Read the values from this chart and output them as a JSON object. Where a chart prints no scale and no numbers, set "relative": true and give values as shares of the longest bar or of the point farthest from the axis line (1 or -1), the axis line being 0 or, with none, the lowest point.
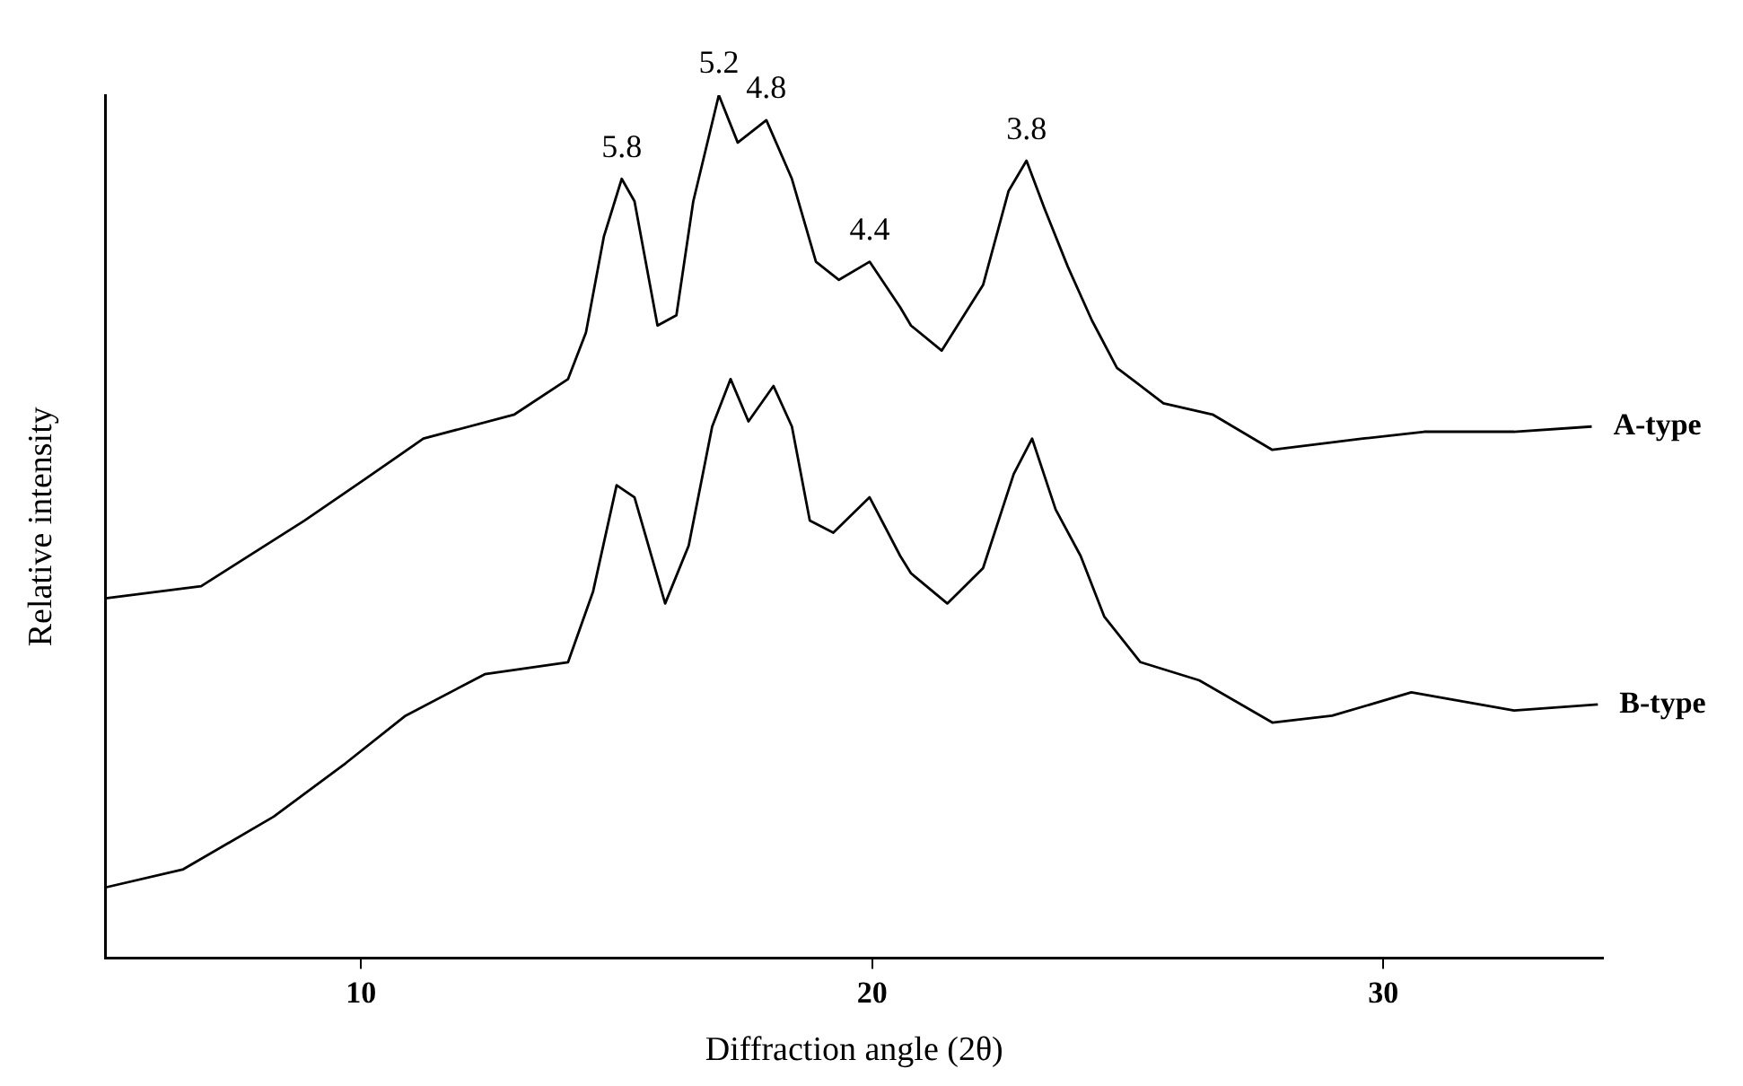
{
  "chart_data": {
    "type": "line",
    "xlabel": "Diffraction angle (2θ)",
    "ylabel": "Relative intensity",
    "relative": true,
    "xlim": [
      5,
      34.3
    ],
    "xticks": [
      10,
      20,
      30
    ],
    "grid": false,
    "legend": false,
    "marker": "none",
    "line_style": "solid",
    "series": [
      {
        "name": "A-type",
        "color": "#000000",
        "x": [
          5.0,
          6.87,
          8.89,
          10.05,
          11.22,
          13.0,
          14.05,
          14.4,
          14.75,
          15.1,
          15.35,
          15.8,
          16.17,
          16.5,
          17.0,
          17.37,
          17.93,
          18.43,
          18.9,
          19.35,
          19.95,
          20.55,
          20.76,
          21.36,
          22.17,
          22.67,
          23.02,
          23.37,
          23.83,
          24.3,
          24.79,
          25.7,
          26.66,
          27.83,
          29.6,
          30.8,
          32.56,
          34.08
        ],
        "values": [
          0.417,
          0.431,
          0.507,
          0.554,
          0.602,
          0.63,
          0.671,
          0.725,
          0.836,
          0.903,
          0.877,
          0.733,
          0.745,
          0.877,
          1.0,
          0.945,
          0.971,
          0.903,
          0.807,
          0.786,
          0.807,
          0.754,
          0.733,
          0.704,
          0.78,
          0.889,
          0.924,
          0.869,
          0.801,
          0.739,
          0.684,
          0.643,
          0.63,
          0.589,
          0.602,
          0.61,
          0.61,
          0.616
        ]
      },
      {
        "name": "B-type",
        "color": "#000000",
        "x": [
          5.0,
          6.52,
          8.29,
          9.7,
          10.87,
          12.42,
          14.05,
          14.54,
          15.0,
          15.35,
          15.95,
          16.41,
          16.87,
          17.23,
          17.58,
          18.07,
          18.43,
          18.78,
          19.24,
          19.95,
          20.55,
          20.76,
          21.47,
          22.17,
          22.77,
          23.13,
          23.59,
          24.08,
          24.54,
          25.25,
          26.4,
          27.83,
          29.0,
          30.55,
          32.56,
          34.2
        ],
        "values": [
          0.082,
          0.103,
          0.164,
          0.226,
          0.281,
          0.329,
          0.343,
          0.425,
          0.548,
          0.534,
          0.411,
          0.478,
          0.616,
          0.671,
          0.622,
          0.663,
          0.616,
          0.507,
          0.493,
          0.534,
          0.466,
          0.446,
          0.411,
          0.452,
          0.561,
          0.602,
          0.52,
          0.466,
          0.396,
          0.343,
          0.322,
          0.273,
          0.281,
          0.308,
          0.287,
          0.294
        ]
      }
    ],
    "annotations": [
      {
        "text": "5.8",
        "x": 15.1,
        "y": 0.903
      },
      {
        "text": "5.2",
        "x": 17.0,
        "y": 1.0
      },
      {
        "text": "4.8",
        "x": 17.93,
        "y": 0.971
      },
      {
        "text": "4.4",
        "x": 19.95,
        "y": 0.807
      },
      {
        "text": "3.8",
        "x": 23.02,
        "y": 0.924
      }
    ]
  }
}
